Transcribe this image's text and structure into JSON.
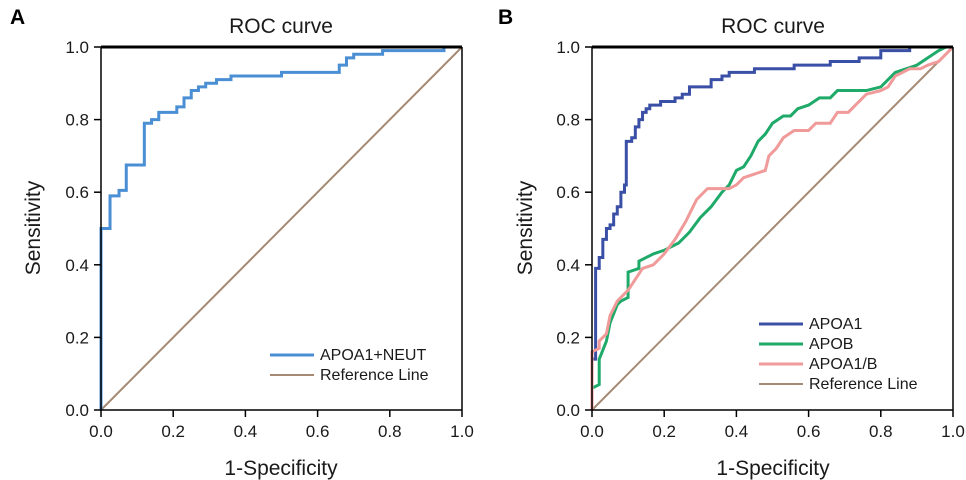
{
  "chart_data": [
    {
      "type": "line",
      "panel_label": "A",
      "title": "ROC curve",
      "xlabel": "1-Specificity",
      "ylabel": "Sensitivity",
      "xlim": [
        0,
        1
      ],
      "ylim": [
        0,
        1
      ],
      "xticks": [
        "0.0",
        "0.2",
        "0.4",
        "0.6",
        "0.8",
        "1.0"
      ],
      "yticks": [
        "0.0",
        "0.2",
        "0.4",
        "0.6",
        "0.8",
        "1.0"
      ],
      "grid": false,
      "legend_position": "bottom-right",
      "series": [
        {
          "name": "APOA1+NEUT",
          "color": "#4a8fd4",
          "step": true,
          "points": [
            [
              0.0,
              0.0
            ],
            [
              0.0,
              0.5
            ],
            [
              0.025,
              0.5
            ],
            [
              0.025,
              0.59
            ],
            [
              0.05,
              0.59
            ],
            [
              0.05,
              0.605
            ],
            [
              0.07,
              0.605
            ],
            [
              0.07,
              0.675
            ],
            [
              0.12,
              0.675
            ],
            [
              0.12,
              0.79
            ],
            [
              0.14,
              0.79
            ],
            [
              0.14,
              0.8
            ],
            [
              0.16,
              0.8
            ],
            [
              0.16,
              0.82
            ],
            [
              0.21,
              0.82
            ],
            [
              0.21,
              0.835
            ],
            [
              0.23,
              0.835
            ],
            [
              0.23,
              0.86
            ],
            [
              0.25,
              0.86
            ],
            [
              0.25,
              0.88
            ],
            [
              0.27,
              0.88
            ],
            [
              0.27,
              0.89
            ],
            [
              0.29,
              0.89
            ],
            [
              0.29,
              0.9
            ],
            [
              0.32,
              0.9
            ],
            [
              0.32,
              0.91
            ],
            [
              0.36,
              0.91
            ],
            [
              0.36,
              0.92
            ],
            [
              0.5,
              0.92
            ],
            [
              0.5,
              0.93
            ],
            [
              0.66,
              0.93
            ],
            [
              0.66,
              0.95
            ],
            [
              0.68,
              0.95
            ],
            [
              0.68,
              0.97
            ],
            [
              0.7,
              0.97
            ],
            [
              0.7,
              0.98
            ],
            [
              0.78,
              0.98
            ],
            [
              0.78,
              0.99
            ],
            [
              0.95,
              0.99
            ],
            [
              0.95,
              1.0
            ],
            [
              1.0,
              1.0
            ]
          ]
        },
        {
          "name": "Reference Line",
          "color": "#a68a74",
          "step": false,
          "points": [
            [
              0,
              0
            ],
            [
              1,
              1
            ]
          ]
        }
      ]
    },
    {
      "type": "line",
      "panel_label": "B",
      "title": "ROC curve",
      "xlabel": "1-Specificity",
      "ylabel": "Sensitivity",
      "xlim": [
        0,
        1
      ],
      "ylim": [
        0,
        1
      ],
      "xticks": [
        "0.0",
        "0.2",
        "0.4",
        "0.6",
        "0.8",
        "1.0"
      ],
      "yticks": [
        "0.0",
        "0.2",
        "0.4",
        "0.6",
        "0.8",
        "1.0"
      ],
      "grid": false,
      "legend_position": "bottom-right",
      "series": [
        {
          "name": "APOA1",
          "color": "#3a4fa6",
          "step": true,
          "points": [
            [
              0.0,
              0.0
            ],
            [
              0.0,
              0.14
            ],
            [
              0.01,
              0.14
            ],
            [
              0.01,
              0.39
            ],
            [
              0.02,
              0.39
            ],
            [
              0.02,
              0.42
            ],
            [
              0.03,
              0.42
            ],
            [
              0.03,
              0.47
            ],
            [
              0.04,
              0.47
            ],
            [
              0.04,
              0.5
            ],
            [
              0.05,
              0.5
            ],
            [
              0.05,
              0.51
            ],
            [
              0.06,
              0.51
            ],
            [
              0.06,
              0.54
            ],
            [
              0.07,
              0.54
            ],
            [
              0.07,
              0.56
            ],
            [
              0.08,
              0.56
            ],
            [
              0.08,
              0.6
            ],
            [
              0.09,
              0.6
            ],
            [
              0.09,
              0.62
            ],
            [
              0.095,
              0.62
            ],
            [
              0.095,
              0.74
            ],
            [
              0.11,
              0.74
            ],
            [
              0.11,
              0.75
            ],
            [
              0.12,
              0.75
            ],
            [
              0.12,
              0.78
            ],
            [
              0.13,
              0.78
            ],
            [
              0.13,
              0.8
            ],
            [
              0.14,
              0.8
            ],
            [
              0.14,
              0.82
            ],
            [
              0.15,
              0.82
            ],
            [
              0.15,
              0.83
            ],
            [
              0.16,
              0.83
            ],
            [
              0.16,
              0.84
            ],
            [
              0.19,
              0.84
            ],
            [
              0.19,
              0.85
            ],
            [
              0.23,
              0.85
            ],
            [
              0.23,
              0.86
            ],
            [
              0.25,
              0.86
            ],
            [
              0.25,
              0.87
            ],
            [
              0.27,
              0.87
            ],
            [
              0.27,
              0.89
            ],
            [
              0.33,
              0.89
            ],
            [
              0.33,
              0.91
            ],
            [
              0.36,
              0.91
            ],
            [
              0.36,
              0.92
            ],
            [
              0.38,
              0.92
            ],
            [
              0.38,
              0.93
            ],
            [
              0.45,
              0.93
            ],
            [
              0.45,
              0.94
            ],
            [
              0.56,
              0.94
            ],
            [
              0.56,
              0.95
            ],
            [
              0.66,
              0.95
            ],
            [
              0.66,
              0.96
            ],
            [
              0.74,
              0.96
            ],
            [
              0.74,
              0.97
            ],
            [
              0.8,
              0.97
            ],
            [
              0.8,
              0.99
            ],
            [
              0.88,
              0.99
            ],
            [
              0.88,
              1.0
            ],
            [
              1.0,
              1.0
            ]
          ]
        },
        {
          "name": "APOB",
          "color": "#1faa6a",
          "step": false,
          "points": [
            [
              0.0,
              0.0
            ],
            [
              0.0,
              0.06
            ],
            [
              0.02,
              0.07
            ],
            [
              0.02,
              0.14
            ],
            [
              0.04,
              0.19
            ],
            [
              0.05,
              0.24
            ],
            [
              0.07,
              0.29
            ],
            [
              0.08,
              0.3
            ],
            [
              0.1,
              0.31
            ],
            [
              0.1,
              0.38
            ],
            [
              0.13,
              0.39
            ],
            [
              0.13,
              0.41
            ],
            [
              0.17,
              0.43
            ],
            [
              0.2,
              0.44
            ],
            [
              0.24,
              0.46
            ],
            [
              0.27,
              0.49
            ],
            [
              0.3,
              0.53
            ],
            [
              0.33,
              0.56
            ],
            [
              0.36,
              0.6
            ],
            [
              0.38,
              0.62
            ],
            [
              0.4,
              0.66
            ],
            [
              0.42,
              0.67
            ],
            [
              0.44,
              0.7
            ],
            [
              0.46,
              0.74
            ],
            [
              0.48,
              0.76
            ],
            [
              0.5,
              0.79
            ],
            [
              0.53,
              0.81
            ],
            [
              0.55,
              0.81
            ],
            [
              0.57,
              0.83
            ],
            [
              0.6,
              0.84
            ],
            [
              0.63,
              0.86
            ],
            [
              0.66,
              0.86
            ],
            [
              0.68,
              0.88
            ],
            [
              0.72,
              0.88
            ],
            [
              0.76,
              0.88
            ],
            [
              0.8,
              0.89
            ],
            [
              0.82,
              0.91
            ],
            [
              0.84,
              0.93
            ],
            [
              0.87,
              0.94
            ],
            [
              0.9,
              0.95
            ],
            [
              0.93,
              0.97
            ],
            [
              0.96,
              0.99
            ],
            [
              0.98,
              1.0
            ],
            [
              1.0,
              1.0
            ]
          ]
        },
        {
          "name": "APOA1/B",
          "color": "#f09a9a",
          "step": false,
          "points": [
            [
              0.0,
              0.0
            ],
            [
              0.0,
              0.16
            ],
            [
              0.02,
              0.17
            ],
            [
              0.02,
              0.19
            ],
            [
              0.04,
              0.21
            ],
            [
              0.05,
              0.26
            ],
            [
              0.07,
              0.3
            ],
            [
              0.08,
              0.31
            ],
            [
              0.1,
              0.33
            ],
            [
              0.12,
              0.36
            ],
            [
              0.14,
              0.39
            ],
            [
              0.17,
              0.4
            ],
            [
              0.2,
              0.43
            ],
            [
              0.23,
              0.47
            ],
            [
              0.26,
              0.52
            ],
            [
              0.28,
              0.56
            ],
            [
              0.29,
              0.58
            ],
            [
              0.32,
              0.61
            ],
            [
              0.38,
              0.61
            ],
            [
              0.4,
              0.62
            ],
            [
              0.42,
              0.64
            ],
            [
              0.45,
              0.65
            ],
            [
              0.48,
              0.66
            ],
            [
              0.49,
              0.7
            ],
            [
              0.51,
              0.72
            ],
            [
              0.53,
              0.75
            ],
            [
              0.56,
              0.77
            ],
            [
              0.6,
              0.77
            ],
            [
              0.62,
              0.79
            ],
            [
              0.66,
              0.79
            ],
            [
              0.68,
              0.82
            ],
            [
              0.71,
              0.82
            ],
            [
              0.74,
              0.85
            ],
            [
              0.76,
              0.87
            ],
            [
              0.8,
              0.88
            ],
            [
              0.82,
              0.89
            ],
            [
              0.84,
              0.92
            ],
            [
              0.86,
              0.93
            ],
            [
              0.88,
              0.94
            ],
            [
              0.91,
              0.94
            ],
            [
              0.93,
              0.95
            ],
            [
              0.96,
              0.96
            ],
            [
              0.98,
              0.98
            ],
            [
              1.0,
              1.0
            ]
          ]
        },
        {
          "name": "Reference Line",
          "color": "#a68a74",
          "step": false,
          "points": [
            [
              0,
              0
            ],
            [
              1,
              1
            ]
          ]
        }
      ]
    }
  ]
}
